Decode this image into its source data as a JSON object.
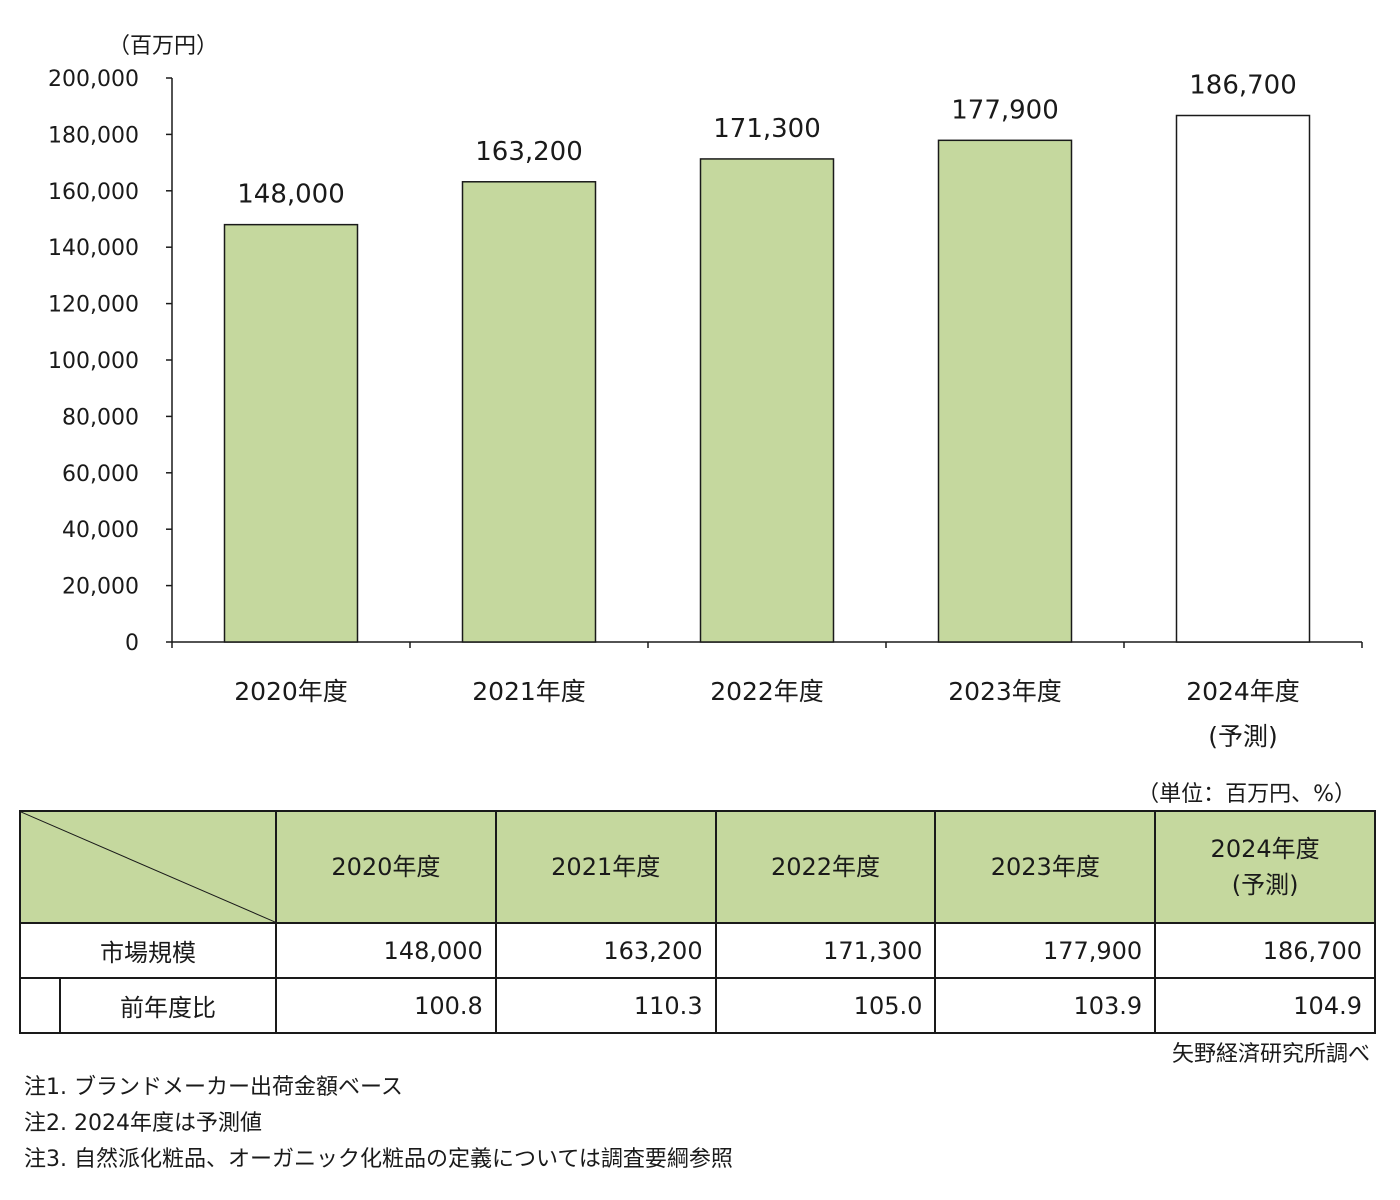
{
  "chart_data": {
    "type": "bar",
    "unit_label": "（百万円）",
    "categories": [
      "2020年度",
      "2021年度",
      "2022年度",
      "2023年度",
      "2024年度"
    ],
    "category_sublabels": [
      "",
      "",
      "",
      "",
      "(予測)"
    ],
    "values": [
      148000,
      163200,
      171300,
      177900,
      186700
    ],
    "value_labels": [
      "148,000",
      "163,200",
      "171,300",
      "177,900",
      "186,700"
    ],
    "forecast": [
      false,
      false,
      false,
      false,
      true
    ],
    "yticks": [
      "0",
      "20,000",
      "40,000",
      "60,000",
      "80,000",
      "100,000",
      "120,000",
      "140,000",
      "160,000",
      "180,000",
      "200,000"
    ],
    "ylim": [
      0,
      200000
    ],
    "colors": {
      "actual": "#c5d89e",
      "forecast": "#ffffff",
      "edge": "#1a1a1a"
    }
  },
  "table": {
    "unit_note": "（単位：百万円、%）",
    "headers": [
      "2020年度",
      "2021年度",
      "2022年度",
      "2023年度",
      "2024年度"
    ],
    "header_sub": [
      "",
      "",
      "",
      "",
      "(予測)"
    ],
    "row_market": {
      "label": "市場規模",
      "values": [
        "148,000",
        "163,200",
        "171,300",
        "177,900",
        "186,700"
      ]
    },
    "row_yoy": {
      "label": "前年度比",
      "values": [
        "100.8",
        "110.3",
        "105.0",
        "103.9",
        "104.9"
      ]
    },
    "header_color": "#c5d89e"
  },
  "source": "矢野経済研究所調べ",
  "notes": [
    "注1. ブランドメーカー出荷金額ベース",
    "注2. 2024年度は予測値",
    "注3. 自然派化粧品、オーガニック化粧品の定義については調査要綱参照"
  ]
}
